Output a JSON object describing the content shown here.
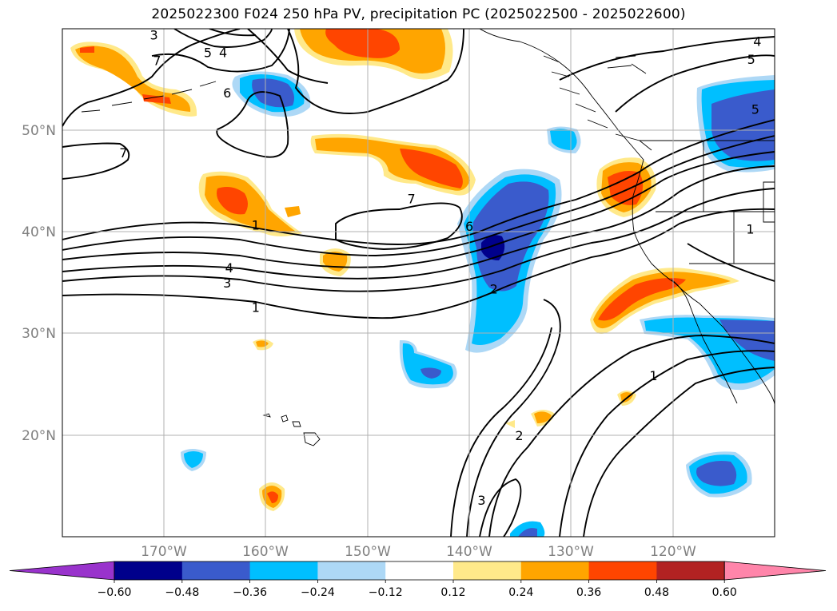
{
  "title": "2025022300 F024 250 hPa PV, precipitation PC (2025022500 - 2025022600)",
  "map": {
    "lat_ticks": [
      "50°N",
      "40°N",
      "30°N",
      "20°N"
    ],
    "lon_ticks": [
      "170°W",
      "160°W",
      "150°W",
      "140°W",
      "130°W",
      "120°W"
    ],
    "extent": {
      "lon_min": -180,
      "lon_max": -110,
      "lat_min": 10,
      "lat_max": 60
    },
    "pv_contour_labels": [
      {
        "text": "3",
        "lon": -171,
        "lat": 59.4
      },
      {
        "text": "5",
        "lon": -165.7,
        "lat": 57.7
      },
      {
        "text": "4",
        "lon": -164.2,
        "lat": 57.7
      },
      {
        "text": "7",
        "lon": -170.7,
        "lat": 56.9
      },
      {
        "text": "6",
        "lon": -163.8,
        "lat": 53.7
      },
      {
        "text": "7",
        "lon": -174,
        "lat": 47.8
      },
      {
        "text": "1",
        "lon": -161,
        "lat": 40.7
      },
      {
        "text": "7",
        "lon": -145.7,
        "lat": 43.3
      },
      {
        "text": "6",
        "lon": -140,
        "lat": 40.6
      },
      {
        "text": "4",
        "lon": -163.6,
        "lat": 36.5
      },
      {
        "text": "3",
        "lon": -163.8,
        "lat": 35
      },
      {
        "text": "2",
        "lon": -137.6,
        "lat": 34.4
      },
      {
        "text": "1",
        "lon": -161,
        "lat": 32.6
      },
      {
        "text": "1",
        "lon": -112.4,
        "lat": 40.3
      },
      {
        "text": "1",
        "lon": -121.9,
        "lat": 25.9
      },
      {
        "text": "2",
        "lon": -135.1,
        "lat": 20
      },
      {
        "text": "3",
        "lon": -138.8,
        "lat": 13.6
      },
      {
        "text": "4",
        "lon": -111.7,
        "lat": 58.8
      },
      {
        "text": "5",
        "lon": -112.3,
        "lat": 57
      },
      {
        "text": "5",
        "lon": -111.9,
        "lat": 52.1
      }
    ]
  },
  "colorbar": {
    "tick_labels": [
      "−0.60",
      "−0.48",
      "−0.36",
      "−0.24",
      "−0.12",
      "0.12",
      "0.24",
      "0.36",
      "0.48",
      "0.60"
    ],
    "colors": [
      "#9933cc",
      "#00008b",
      "#3a5bcc",
      "#00bfff",
      "#add8f6",
      "#ffffff",
      "#ffe98a",
      "#ffa500",
      "#ff4500",
      "#b22222",
      "#ff85aa"
    ]
  }
}
